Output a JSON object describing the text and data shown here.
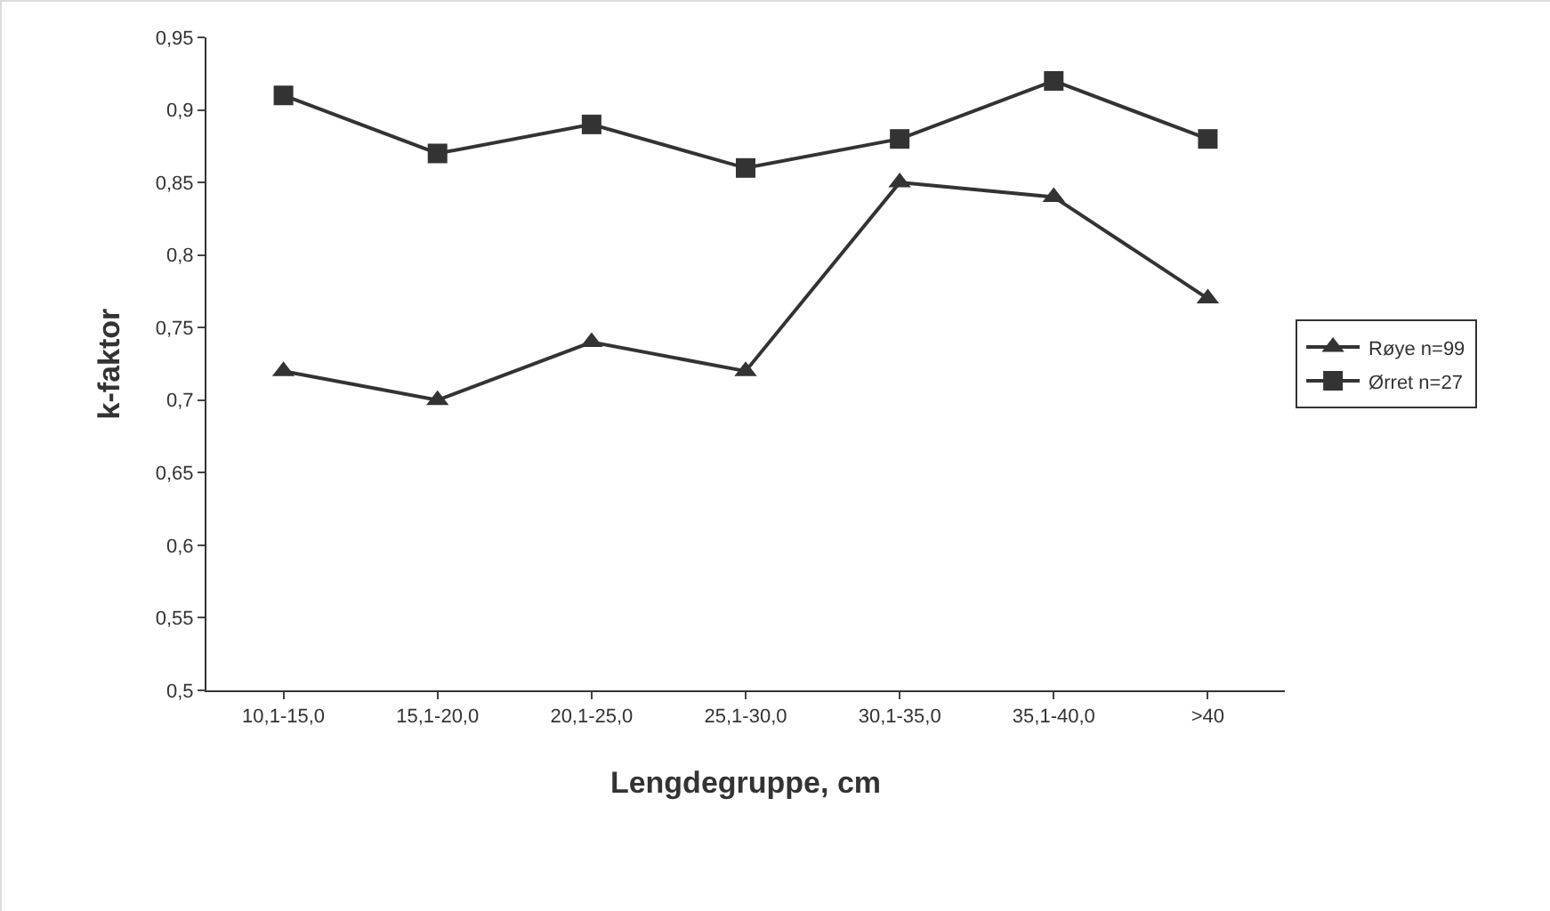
{
  "chart_data": {
    "type": "line",
    "xlabel": "Lengdegruppe, cm",
    "ylabel": "k-faktor",
    "categories": [
      "10,1-15,0",
      "15,1-20,0",
      "20,1-25,0",
      "25,1-30,0",
      "30,1-35,0",
      "35,1-40,0",
      ">40"
    ],
    "series": [
      {
        "name": "Røye n=99",
        "color": "#333333",
        "marker": "triangle",
        "values": [
          0.72,
          0.7,
          0.74,
          0.72,
          0.85,
          0.84,
          0.77
        ]
      },
      {
        "name": "Ørret n=27",
        "color": "#333333",
        "marker": "square",
        "values": [
          0.91,
          0.87,
          0.89,
          0.86,
          0.88,
          0.92,
          0.88
        ]
      }
    ],
    "ylim": [
      0.5,
      0.95
    ],
    "yticks": [
      {
        "value": 0.5,
        "label": "0,5"
      },
      {
        "value": 0.55,
        "label": "0,55"
      },
      {
        "value": 0.6,
        "label": "0,6"
      },
      {
        "value": 0.65,
        "label": "0,65"
      },
      {
        "value": 0.7,
        "label": "0,7"
      },
      {
        "value": 0.75,
        "label": "0,75"
      },
      {
        "value": 0.8,
        "label": "0,8"
      },
      {
        "value": 0.85,
        "label": "0,85"
      },
      {
        "value": 0.9,
        "label": "0,9"
      },
      {
        "value": 0.95,
        "label": "0,95"
      }
    ],
    "grid": false,
    "legend": "right",
    "line_style": "solid"
  }
}
